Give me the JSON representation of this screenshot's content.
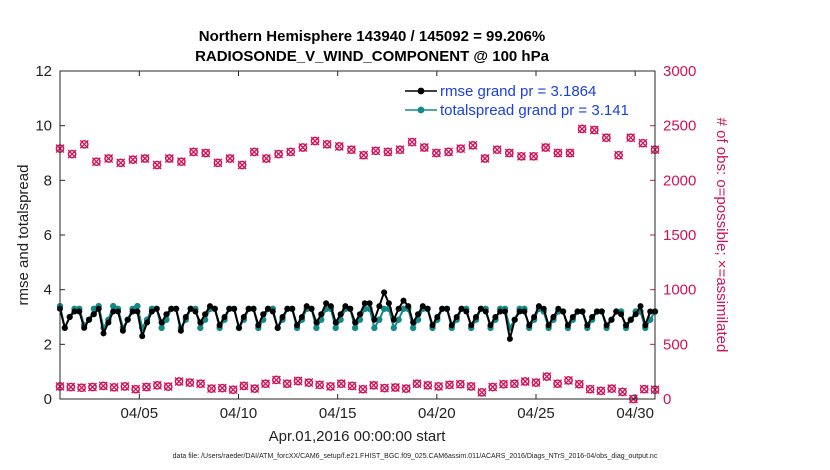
{
  "chart_data": {
    "type": "line",
    "title_line1": "Northern Hemisphere 143940 / 145092 = 99.206%",
    "title_line2": "RADIOSONDE_V_WIND_COMPONENT @ 100 hPa",
    "ylabel_left": "rmse and totalspread",
    "ylabel_right": "# of obs: o=possible; ×=assimilated",
    "xlabel": "Apr.01,2016 00:00:00 start",
    "footer": "data file: /Users/raeder/DAI/ATM_forcXX/CAM6_setup/f.e21.FHIST_BGC.f09_025.CAM6assim.011/ACARS_2016/Diags_NTrS_2016-04/obs_diag_output.nc",
    "x_range_days": [
      1,
      31
    ],
    "ylim_left": [
      0,
      12
    ],
    "ylim_right": [
      0,
      3000
    ],
    "yticks_left": [
      "0",
      "2",
      "4",
      "6",
      "8",
      "10",
      "12"
    ],
    "yticks_right": [
      "0",
      "500",
      "1000",
      "1500",
      "2000",
      "2500",
      "3000"
    ],
    "xticks": [
      {
        "day": 5,
        "label": "04/05"
      },
      {
        "day": 10,
        "label": "04/10"
      },
      {
        "day": 15,
        "label": "04/15"
      },
      {
        "day": 20,
        "label": "04/20"
      },
      {
        "day": 25,
        "label": "04/25"
      },
      {
        "day": 30,
        "label": "04/30"
      }
    ],
    "legend": [
      {
        "label": "rmse grand pr = 3.1864",
        "color": "#000000"
      },
      {
        "label": "totalspread grand pr = 3.141",
        "color": "#138a87"
      }
    ],
    "colors": {
      "rmse": "#000000",
      "spread": "#138a87",
      "obs": "#d0125a"
    },
    "times_per_day": 4,
    "series": [
      {
        "name": "rmse",
        "values": [
          3.3,
          2.6,
          3.0,
          3.2,
          3.2,
          2.6,
          2.9,
          3.1,
          3.3,
          2.4,
          2.8,
          3.2,
          3.2,
          2.5,
          2.9,
          3.2,
          3.2,
          2.3,
          2.8,
          3.2,
          3.3,
          2.8,
          3.1,
          3.3,
          3.3,
          2.5,
          3.0,
          3.3,
          3.2,
          2.8,
          3.1,
          3.4,
          3.3,
          2.7,
          3.0,
          3.3,
          3.3,
          2.6,
          3.0,
          3.3,
          3.3,
          2.7,
          3.1,
          3.3,
          3.2,
          2.6,
          3.0,
          3.3,
          3.3,
          2.7,
          3.0,
          3.4,
          3.3,
          2.8,
          3.1,
          3.5,
          3.4,
          2.8,
          3.1,
          3.4,
          3.3,
          2.8,
          3.1,
          3.5,
          3.5,
          2.9,
          3.4,
          3.9,
          3.5,
          2.9,
          3.3,
          3.6,
          3.4,
          2.8,
          3.1,
          3.4,
          3.3,
          2.7,
          3.0,
          3.3,
          3.3,
          2.7,
          3.0,
          3.3,
          3.2,
          2.7,
          3.0,
          3.3,
          3.2,
          2.7,
          3.0,
          3.2,
          3.2,
          2.2,
          2.9,
          3.2,
          3.2,
          2.7,
          3.0,
          3.4,
          3.3,
          2.7,
          3.0,
          3.3,
          3.2,
          2.7,
          3.0,
          3.2,
          3.2,
          2.7,
          3.0,
          3.2,
          3.2,
          2.7,
          2.9,
          3.2,
          3.1,
          2.7,
          2.9,
          3.1,
          3.4,
          2.7,
          3.2,
          3.2
        ]
      },
      {
        "name": "totalspread",
        "values": [
          3.4,
          2.6,
          3.0,
          3.3,
          3.3,
          2.7,
          2.9,
          3.3,
          3.4,
          2.6,
          2.9,
          3.4,
          3.3,
          2.6,
          2.9,
          3.3,
          3.4,
          2.6,
          2.9,
          3.3,
          3.3,
          2.6,
          2.9,
          3.3,
          3.3,
          2.6,
          2.9,
          3.3,
          3.3,
          2.6,
          2.9,
          3.3,
          3.3,
          2.6,
          2.9,
          3.3,
          3.3,
          2.6,
          2.9,
          3.3,
          3.3,
          2.6,
          2.9,
          3.3,
          3.3,
          2.6,
          2.9,
          3.3,
          3.3,
          2.6,
          2.9,
          3.3,
          3.3,
          2.6,
          2.9,
          3.3,
          3.3,
          2.6,
          2.9,
          3.3,
          3.3,
          2.6,
          2.9,
          3.3,
          3.3,
          2.6,
          2.9,
          3.3,
          3.3,
          2.6,
          2.9,
          3.3,
          3.3,
          2.6,
          2.9,
          3.3,
          3.3,
          2.6,
          2.9,
          3.3,
          3.3,
          2.6,
          2.9,
          3.3,
          3.3,
          2.6,
          2.9,
          3.3,
          3.3,
          2.6,
          2.9,
          3.3,
          3.3,
          2.6,
          2.9,
          3.3,
          3.3,
          2.6,
          2.9,
          3.3,
          3.2,
          2.6,
          2.9,
          3.2,
          3.2,
          2.6,
          2.9,
          3.2,
          3.2,
          2.6,
          2.9,
          3.2,
          3.2,
          2.6,
          2.9,
          3.2,
          3.2,
          2.6,
          2.9,
          3.2,
          3.2,
          2.6,
          2.9,
          3.2
        ]
      },
      {
        "name": "obs_possible_00_12Z",
        "axis": "right",
        "values": [
          2290,
          2240,
          2330,
          2170,
          2200,
          2160,
          2190,
          2200,
          2140,
          2200,
          2170,
          2260,
          2250,
          2160,
          2200,
          2140,
          2260,
          2200,
          2240,
          2260,
          2300,
          2360,
          2330,
          2310,
          2280,
          2230,
          2270,
          2260,
          2280,
          2350,
          2300,
          2250,
          2260,
          2290,
          2320,
          2200,
          2280,
          2250,
          2220,
          2220,
          2300,
          2250,
          2250,
          2470,
          2460,
          2390,
          2230,
          2390,
          2340,
          2280
        ]
      },
      {
        "name": "obs_possible_06_18Z",
        "axis": "right",
        "values": [
          115,
          110,
          103,
          110,
          120,
          107,
          115,
          90,
          110,
          125,
          113,
          160,
          150,
          140,
          95,
          100,
          85,
          120,
          95,
          140,
          175,
          140,
          165,
          150,
          130,
          115,
          140,
          120,
          90,
          125,
          100,
          105,
          95,
          140,
          125,
          115,
          130,
          135,
          115,
          60,
          110,
          135,
          140,
          160,
          150,
          205,
          140,
          170,
          135,
          90,
          75,
          95,
          65,
          0,
          90,
          85
        ]
      }
    ]
  }
}
